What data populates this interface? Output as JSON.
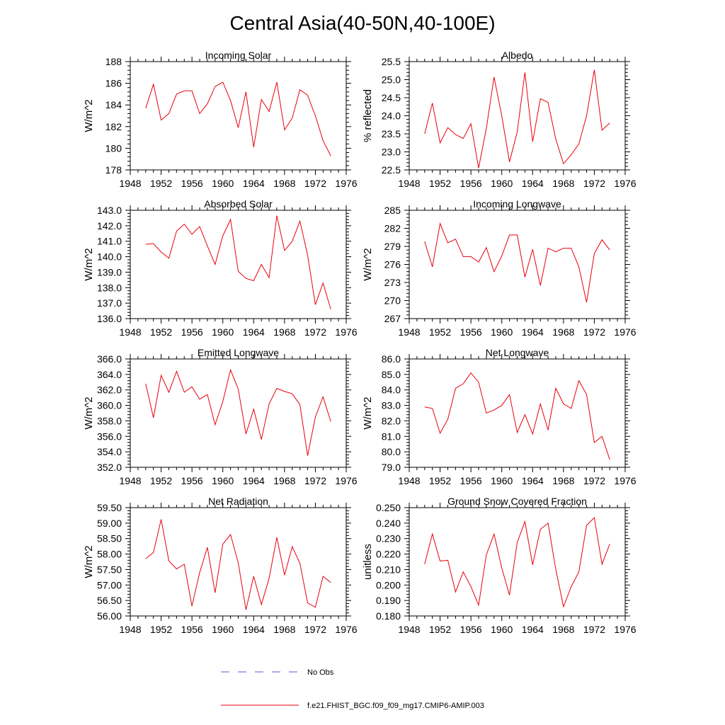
{
  "figure": {
    "title": "Central Asia(40-50N,40-100E)",
    "line_color": "#e8000b",
    "obs_color": "#5a5ad8"
  },
  "legend": {
    "obs_label": "No Obs",
    "model_label": "f.e21.FHIST_BGC.f09_f09_mg17.CMIP6-AMIP.003"
  },
  "chart_data": [
    {
      "type": "line",
      "title": "Incoming Solar",
      "ylabel": "W/m^2",
      "xlim": [
        1948,
        1976
      ],
      "xticks": [
        1948,
        1952,
        1956,
        1960,
        1964,
        1968,
        1972,
        1976
      ],
      "ylim": [
        178,
        188
      ],
      "yticks": [
        "178",
        "180",
        "182",
        "184",
        "186",
        "188"
      ],
      "x": [
        1950,
        1951,
        1952,
        1953,
        1954,
        1955,
        1956,
        1957,
        1958,
        1959,
        1960,
        1961,
        1962,
        1963,
        1964,
        1965,
        1966,
        1967,
        1968,
        1969,
        1970,
        1971,
        1972,
        1973,
        1974
      ],
      "values": [
        183.7,
        185.9,
        182.6,
        183.2,
        185.0,
        185.3,
        185.3,
        183.2,
        184.1,
        185.7,
        186.1,
        184.4,
        181.9,
        185.2,
        180.1,
        184.5,
        183.4,
        186.1,
        181.7,
        182.8,
        185.4,
        184.9,
        183.0,
        180.7,
        179.3
      ]
    },
    {
      "type": "line",
      "title": "Albedo",
      "ylabel": "% reflected",
      "xlim": [
        1948,
        1976
      ],
      "xticks": [
        1948,
        1952,
        1956,
        1960,
        1964,
        1968,
        1972,
        1976
      ],
      "ylim": [
        22.5,
        25.5
      ],
      "yticks": [
        "22.5",
        "23.0",
        "23.5",
        "24.0",
        "24.5",
        "25.0",
        "25.5"
      ],
      "x": [
        1950,
        1951,
        1952,
        1953,
        1954,
        1955,
        1956,
        1957,
        1958,
        1959,
        1960,
        1961,
        1962,
        1963,
        1964,
        1965,
        1966,
        1967,
        1968,
        1969,
        1970,
        1971,
        1972,
        1973,
        1974
      ],
      "values": [
        23.5,
        24.35,
        23.25,
        23.67,
        23.48,
        23.37,
        23.78,
        22.55,
        23.65,
        25.07,
        24.0,
        22.72,
        23.55,
        25.2,
        23.28,
        24.47,
        24.37,
        23.35,
        22.67,
        22.92,
        23.22,
        24.0,
        25.27,
        23.6,
        23.8
      ]
    },
    {
      "type": "line",
      "title": "Absorbed Solar",
      "ylabel": "W/m^2",
      "xlim": [
        1948,
        1976
      ],
      "xticks": [
        1948,
        1952,
        1956,
        1960,
        1964,
        1968,
        1972,
        1976
      ],
      "ylim": [
        136.0,
        143.0
      ],
      "yticks": [
        "136.0",
        "137.0",
        "138.0",
        "139.0",
        "140.0",
        "141.0",
        "142.0",
        "143.0"
      ],
      "x": [
        1950,
        1951,
        1952,
        1953,
        1954,
        1955,
        1956,
        1957,
        1958,
        1959,
        1960,
        1961,
        1962,
        1963,
        1964,
        1965,
        1966,
        1967,
        1968,
        1969,
        1970,
        1971,
        1972,
        1973,
        1974
      ],
      "values": [
        140.8,
        140.85,
        140.3,
        139.9,
        141.65,
        142.1,
        141.45,
        141.95,
        140.7,
        139.5,
        141.35,
        142.4,
        139.05,
        138.6,
        138.45,
        139.5,
        138.65,
        142.65,
        140.4,
        141.0,
        142.3,
        140.1,
        136.9,
        138.3,
        136.6
      ]
    },
    {
      "type": "line",
      "title": "Incoming Longwave",
      "ylabel": "W/m^2",
      "xlim": [
        1948,
        1976
      ],
      "xticks": [
        1948,
        1952,
        1956,
        1960,
        1964,
        1968,
        1972,
        1976
      ],
      "ylim": [
        267,
        285
      ],
      "yticks": [
        "267",
        "270",
        "273",
        "276",
        "279",
        "282",
        "285"
      ],
      "x": [
        1950,
        1951,
        1952,
        1953,
        1954,
        1955,
        1956,
        1957,
        1958,
        1959,
        1960,
        1961,
        1962,
        1963,
        1964,
        1965,
        1966,
        1967,
        1968,
        1969,
        1970,
        1971,
        1972,
        1973,
        1974
      ],
      "values": [
        279.8,
        275.6,
        282.8,
        279.6,
        280.2,
        277.3,
        277.3,
        276.4,
        278.8,
        274.8,
        277.4,
        280.9,
        280.9,
        273.9,
        278.5,
        272.5,
        278.7,
        278.1,
        278.7,
        278.7,
        275.6,
        269.7,
        277.8,
        280.1,
        278.4
      ]
    },
    {
      "type": "line",
      "title": "Emitted Longwave",
      "ylabel": "W/m^2",
      "xlim": [
        1948,
        1976
      ],
      "xticks": [
        1948,
        1952,
        1956,
        1960,
        1964,
        1968,
        1972,
        1976
      ],
      "ylim": [
        352.0,
        366.0
      ],
      "yticks": [
        "352.0",
        "354.0",
        "356.0",
        "358.0",
        "360.0",
        "362.0",
        "364.0",
        "366.0"
      ],
      "x": [
        1950,
        1951,
        1952,
        1953,
        1954,
        1955,
        1956,
        1957,
        1958,
        1959,
        1960,
        1961,
        1962,
        1963,
        1964,
        1965,
        1966,
        1967,
        1968,
        1969,
        1970,
        1971,
        1972,
        1973,
        1974
      ],
      "values": [
        362.8,
        358.4,
        363.9,
        361.7,
        364.4,
        361.7,
        362.4,
        360.8,
        361.4,
        357.5,
        360.5,
        364.6,
        362.1,
        356.3,
        359.5,
        355.6,
        360.2,
        362.2,
        361.8,
        361.5,
        360.1,
        353.5,
        358.5,
        361.1,
        357.9
      ]
    },
    {
      "type": "line",
      "title": "Net Longwave",
      "ylabel": "W/m^2",
      "xlim": [
        1948,
        1976
      ],
      "xticks": [
        1948,
        1952,
        1956,
        1960,
        1964,
        1968,
        1972,
        1976
      ],
      "ylim": [
        79.0,
        86.0
      ],
      "yticks": [
        "79.0",
        "80.0",
        "81.0",
        "82.0",
        "83.0",
        "84.0",
        "85.0",
        "86.0"
      ],
      "x": [
        1950,
        1951,
        1952,
        1953,
        1954,
        1955,
        1956,
        1957,
        1958,
        1959,
        1960,
        1961,
        1962,
        1963,
        1964,
        1965,
        1966,
        1967,
        1968,
        1969,
        1970,
        1971,
        1972,
        1973,
        1974
      ],
      "values": [
        82.9,
        82.8,
        81.2,
        82.1,
        84.1,
        84.4,
        85.1,
        84.5,
        82.5,
        82.7,
        83.0,
        83.7,
        81.25,
        82.4,
        81.15,
        83.1,
        81.4,
        84.1,
        83.1,
        82.8,
        84.6,
        83.7,
        80.6,
        81.0,
        79.5
      ]
    },
    {
      "type": "line",
      "title": "Net Radiation",
      "ylabel": "W/m^2",
      "xlim": [
        1948,
        1976
      ],
      "xticks": [
        1948,
        1952,
        1956,
        1960,
        1964,
        1968,
        1972,
        1976
      ],
      "ylim": [
        56.0,
        59.5
      ],
      "yticks": [
        "56.00",
        "56.50",
        "57.00",
        "57.50",
        "58.00",
        "58.50",
        "59.00",
        "59.50"
      ],
      "x": [
        1950,
        1951,
        1952,
        1953,
        1954,
        1955,
        1956,
        1957,
        1958,
        1959,
        1960,
        1961,
        1962,
        1963,
        1964,
        1965,
        1966,
        1967,
        1968,
        1969,
        1970,
        1971,
        1972,
        1973,
        1974
      ],
      "values": [
        57.85,
        58.05,
        59.12,
        57.78,
        57.52,
        57.67,
        56.32,
        57.4,
        58.22,
        56.75,
        58.32,
        58.63,
        57.72,
        56.2,
        57.28,
        56.37,
        57.22,
        58.54,
        57.32,
        58.24,
        57.7,
        56.42,
        56.28,
        57.28,
        57.08
      ]
    },
    {
      "type": "line",
      "title": "Ground Snow Covered Fraction",
      "ylabel": "unitless",
      "xlim": [
        1948,
        1976
      ],
      "xticks": [
        1948,
        1952,
        1956,
        1960,
        1964,
        1968,
        1972,
        1976
      ],
      "ylim": [
        0.18,
        0.25
      ],
      "yticks": [
        "0.180",
        "0.190",
        "0.200",
        "0.210",
        "0.220",
        "0.230",
        "0.240",
        "0.250"
      ],
      "x": [
        1950,
        1951,
        1952,
        1953,
        1954,
        1955,
        1956,
        1957,
        1958,
        1959,
        1960,
        1961,
        1962,
        1963,
        1964,
        1965,
        1966,
        1967,
        1968,
        1969,
        1970,
        1971,
        1972,
        1973,
        1974
      ],
      "values": [
        0.2135,
        0.233,
        0.2155,
        0.216,
        0.1955,
        0.2085,
        0.199,
        0.187,
        0.2195,
        0.233,
        0.211,
        0.1935,
        0.2275,
        0.241,
        0.213,
        0.236,
        0.24,
        0.21,
        0.186,
        0.199,
        0.2085,
        0.2385,
        0.2435,
        0.2135,
        0.2265
      ]
    }
  ]
}
